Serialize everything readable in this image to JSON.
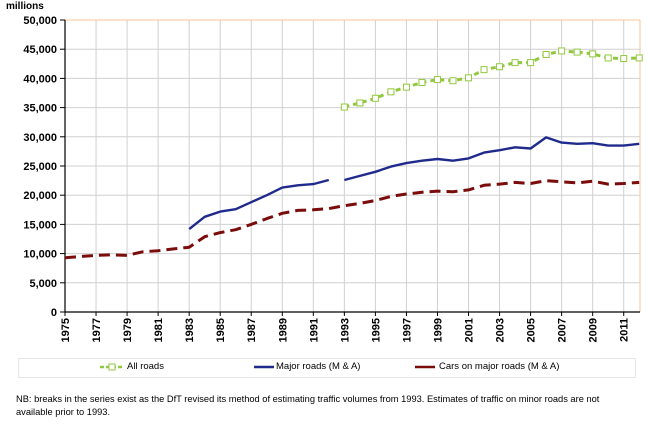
{
  "chart_data": {
    "type": "line",
    "title": "",
    "unit_label": "millions",
    "xlabel": "",
    "ylabel": "millions",
    "ylim": [
      0,
      50000
    ],
    "xlim": [
      1975,
      2012
    ],
    "yticks": [
      0,
      5000,
      10000,
      15000,
      20000,
      25000,
      30000,
      35000,
      40000,
      45000,
      50000
    ],
    "ytick_labels": [
      "0",
      "5,000",
      "10,000",
      "15,000",
      "20,000",
      "25,000",
      "30,000",
      "35,000",
      "40,000",
      "45,000",
      "50,000"
    ],
    "xticks": [
      1975,
      1977,
      1979,
      1981,
      1983,
      1985,
      1987,
      1989,
      1991,
      1993,
      1995,
      1997,
      1999,
      2001,
      2003,
      2005,
      2007,
      2009,
      2011
    ],
    "xtick_labels": [
      "1975",
      "1977",
      "1979",
      "1981",
      "1983",
      "1985",
      "1987",
      "1989",
      "1991",
      "1993",
      "1995",
      "1997",
      "1999",
      "2001",
      "2003",
      "2005",
      "2007",
      "2009",
      "2011"
    ],
    "grid": true,
    "legend_position": "bottom",
    "series": [
      {
        "name": "All roads",
        "color": "#92c83e",
        "style": "dashed-square-markers",
        "segments": [
          {
            "x": [
              1993,
              1994,
              1995,
              1996,
              1997,
              1998,
              1999,
              2000,
              2001,
              2002,
              2003,
              2004,
              2005,
              2006,
              2007,
              2008,
              2009,
              2010,
              2011,
              2012
            ],
            "values": [
              35100,
              35800,
              36600,
              37700,
              38500,
              39300,
              39800,
              39600,
              40100,
              41500,
              42000,
              42700,
              42700,
              44100,
              44700,
              44500,
              44200,
              43500,
              43400,
              43500
            ]
          }
        ]
      },
      {
        "name": "Major roads (M & A)",
        "color": "#1f2a8c",
        "style": "solid",
        "segments": [
          {
            "x": [
              1983,
              1984,
              1985,
              1986,
              1987,
              1988,
              1989,
              1990,
              1991,
              1992
            ],
            "values": [
              14200,
              16300,
              17200,
              17600,
              18800,
              20000,
              21300,
              21700,
              21900,
              22600
            ]
          },
          {
            "x": [
              1993,
              1994,
              1995,
              1996,
              1997,
              1998,
              1999,
              2000,
              2001,
              2002,
              2003,
              2004,
              2005,
              2006,
              2007,
              2008,
              2009,
              2010,
              2011,
              2012
            ],
            "values": [
              22600,
              23300,
              24000,
              24900,
              25500,
              25900,
              26200,
              25900,
              26300,
              27300,
              27700,
              28200,
              28000,
              29900,
              29000,
              28800,
              28900,
              28500,
              28500,
              28800
            ]
          }
        ]
      },
      {
        "name": "Cars on major roads (M & A)",
        "color": "#7b0c0c",
        "style": "dashed",
        "segments": [
          {
            "x": [
              1975,
              1976,
              1977,
              1978,
              1979,
              1980,
              1981,
              1982,
              1983,
              1984,
              1985,
              1986,
              1987,
              1988,
              1989,
              1990,
              1991,
              1992,
              1993,
              1994,
              1995,
              1996,
              1997,
              1998,
              1999,
              2000,
              2001,
              2002,
              2003,
              2004,
              2005,
              2006,
              2007,
              2008,
              2009,
              2010,
              2011,
              2012
            ],
            "values": [
              9300,
              9500,
              9700,
              9800,
              9700,
              10300,
              10500,
              10800,
              11100,
              12900,
              13600,
              14100,
              15000,
              16000,
              16900,
              17400,
              17500,
              17700,
              18200,
              18600,
              19100,
              19800,
              20200,
              20500,
              20700,
              20600,
              20900,
              21700,
              21900,
              22200,
              22000,
              22500,
              22300,
              22100,
              22400,
              21900,
              22000,
              22200
            ]
          }
        ]
      }
    ]
  },
  "legend": {
    "items": [
      {
        "label": "All roads"
      },
      {
        "label": "Major roads (M & A)"
      },
      {
        "label": "Cars on major roads (M & A)"
      }
    ]
  },
  "note": "NB: breaks in the series exist as the DfT revised its method of estimating traffic volumes from 1993. Estimates of traffic on minor roads are not available prior to 1993."
}
